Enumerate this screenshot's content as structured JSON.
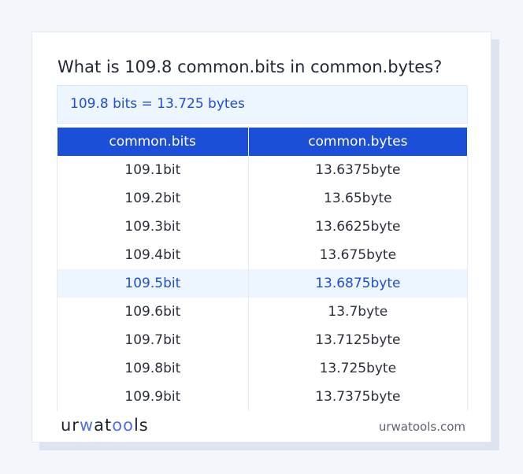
{
  "question": "What is 109.8 common.bits in common.bytes?",
  "result": "109.8 bits = 13.725 bytes",
  "table": {
    "headers": [
      "common.bits",
      "common.bytes"
    ],
    "rows": [
      [
        "109.1bit",
        "13.6375byte"
      ],
      [
        "109.2bit",
        "13.65byte"
      ],
      [
        "109.3bit",
        "13.6625byte"
      ],
      [
        "109.4bit",
        "13.675byte"
      ],
      [
        "109.5bit",
        "13.6875byte"
      ],
      [
        "109.6bit",
        "13.7byte"
      ],
      [
        "109.7bit",
        "13.7125byte"
      ],
      [
        "109.8bit",
        "13.725byte"
      ],
      [
        "109.9bit",
        "13.7375byte"
      ]
    ],
    "highlighted_row": 4
  },
  "footer": {
    "logo": "urwatools",
    "site": "urwatools.com"
  },
  "colors": {
    "accent": "#1c4fd8",
    "highlight_bg": "#edf5ff"
  }
}
